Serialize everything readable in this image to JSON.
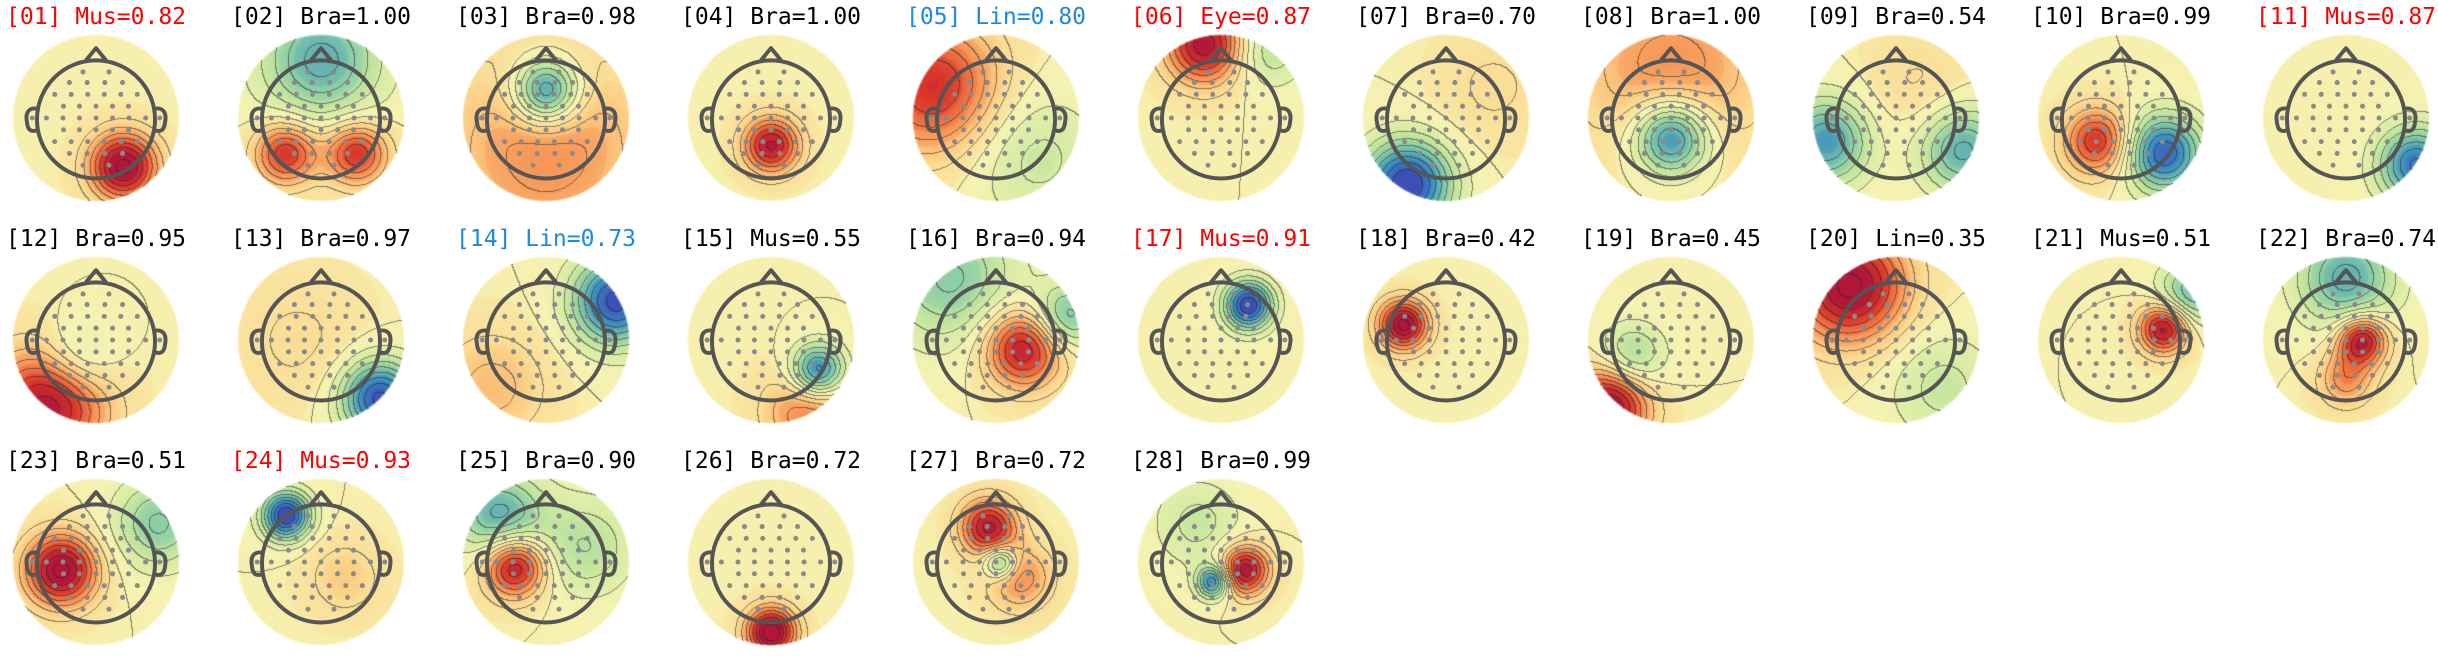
{
  "figure": {
    "components": [
      {
        "label": "[01] Mus=0.82",
        "class": "Mus",
        "prob": 0.82,
        "highlight": "red"
      },
      {
        "label": "[02] Bra=1.00",
        "class": "Bra",
        "prob": 1.0,
        "highlight": "none"
      },
      {
        "label": "[03] Bra=0.98",
        "class": "Bra",
        "prob": 0.98,
        "highlight": "none"
      },
      {
        "label": "[04] Bra=1.00",
        "class": "Bra",
        "prob": 1.0,
        "highlight": "none"
      },
      {
        "label": "[05] Lin=0.80",
        "class": "Lin",
        "prob": 0.8,
        "highlight": "blue"
      },
      {
        "label": "[06] Eye=0.87",
        "class": "Eye",
        "prob": 0.87,
        "highlight": "red"
      },
      {
        "label": "[07] Bra=0.70",
        "class": "Bra",
        "prob": 0.7,
        "highlight": "none"
      },
      {
        "label": "[08] Bra=1.00",
        "class": "Bra",
        "prob": 1.0,
        "highlight": "none"
      },
      {
        "label": "[09] Bra=0.54",
        "class": "Bra",
        "prob": 0.54,
        "highlight": "none"
      },
      {
        "label": "[10] Bra=0.99",
        "class": "Bra",
        "prob": 0.99,
        "highlight": "none"
      },
      {
        "label": "[11] Mus=0.87",
        "class": "Mus",
        "prob": 0.87,
        "highlight": "red"
      },
      {
        "label": "[12] Bra=0.95",
        "class": "Bra",
        "prob": 0.95,
        "highlight": "none"
      },
      {
        "label": "[13] Bra=0.97",
        "class": "Bra",
        "prob": 0.97,
        "highlight": "none"
      },
      {
        "label": "[14] Lin=0.73",
        "class": "Lin",
        "prob": 0.73,
        "highlight": "blue"
      },
      {
        "label": "[15] Mus=0.55",
        "class": "Mus",
        "prob": 0.55,
        "highlight": "none"
      },
      {
        "label": "[16] Bra=0.94",
        "class": "Bra",
        "prob": 0.94,
        "highlight": "none"
      },
      {
        "label": "[17] Mus=0.91",
        "class": "Mus",
        "prob": 0.91,
        "highlight": "red"
      },
      {
        "label": "[18] Bra=0.42",
        "class": "Bra",
        "prob": 0.42,
        "highlight": "none"
      },
      {
        "label": "[19] Bra=0.45",
        "class": "Bra",
        "prob": 0.45,
        "highlight": "none"
      },
      {
        "label": "[20] Lin=0.35",
        "class": "Lin",
        "prob": 0.35,
        "highlight": "none"
      },
      {
        "label": "[21] Mus=0.51",
        "class": "Mus",
        "prob": 0.51,
        "highlight": "none"
      },
      {
        "label": "[22] Bra=0.74",
        "class": "Bra",
        "prob": 0.74,
        "highlight": "none"
      },
      {
        "label": "[23] Bra=0.51",
        "class": "Bra",
        "prob": 0.51,
        "highlight": "none"
      },
      {
        "label": "[24] Mus=0.93",
        "class": "Mus",
        "prob": 0.93,
        "highlight": "red"
      },
      {
        "label": "[25] Bra=0.90",
        "class": "Bra",
        "prob": 0.9,
        "highlight": "none"
      },
      {
        "label": "[26] Bra=0.72",
        "class": "Bra",
        "prob": 0.72,
        "highlight": "none"
      },
      {
        "label": "[27] Bra=0.72",
        "class": "Bra",
        "prob": 0.72,
        "highlight": "none"
      },
      {
        "label": "[28] Bra=0.99",
        "class": "Bra",
        "prob": 0.99,
        "highlight": "none"
      }
    ],
    "colors": {
      "highlight_red": "#ff0000",
      "highlight_blue": "#1e88e5",
      "label_default": "#000000",
      "head_outline": "#555555",
      "electrode": "#8a8a8a",
      "colormap": [
        "#3b4fb8",
        "#3a8fc0",
        "#7fc8a8",
        "#c9e89e",
        "#f6f3b2",
        "#fcd48a",
        "#f68b4d",
        "#d9352a",
        "#b2163a"
      ]
    }
  }
}
